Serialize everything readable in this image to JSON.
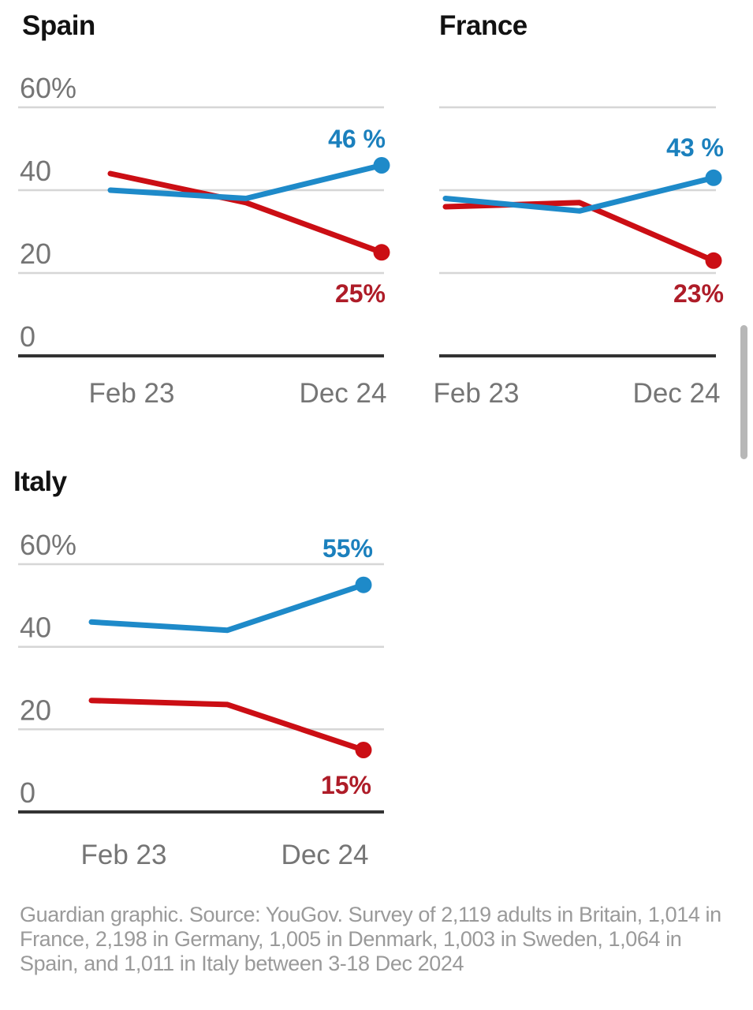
{
  "page": {
    "background": "#ffffff"
  },
  "colors": {
    "blue_line": "#1e8ac9",
    "blue_label": "#1b80bd",
    "red_line": "#cb0e14",
    "red_label": "#ae1c28",
    "gridline": "#d6d6d6",
    "axis": "#333333",
    "tick_text": "#757575",
    "title_text": "#121212",
    "footer_text": "#9a9a9a",
    "scrollbar": "#b7b7b7"
  },
  "chart_data": [
    {
      "type": "line",
      "title": "Spain",
      "categories": [
        "Feb 23",
        "",
        "Dec 24"
      ],
      "x_tick_labels": [
        "Feb 23",
        "Dec 24"
      ],
      "y_ticks": [
        {
          "label": "60%",
          "value": 60
        },
        {
          "label": "40",
          "value": 40
        },
        {
          "label": "20",
          "value": 20
        },
        {
          "label": "0",
          "value": 0
        }
      ],
      "gridline_values": [
        60,
        40,
        20
      ],
      "ylim": [
        0,
        65
      ],
      "legend": "none",
      "series": [
        {
          "name": "blue",
          "color": "#1e8ac9",
          "values": [
            40,
            38,
            46
          ],
          "end_label": "46 %"
        },
        {
          "name": "red",
          "color": "#cb0e14",
          "values": [
            44,
            37,
            25
          ],
          "end_label": "25%"
        }
      ]
    },
    {
      "type": "line",
      "title": "France",
      "categories": [
        "Feb 23",
        "",
        "Dec 24"
      ],
      "x_tick_labels": [
        "Feb 23",
        "Dec 24"
      ],
      "y_ticks": [],
      "gridline_values": [
        60,
        40,
        20
      ],
      "ylim": [
        0,
        65
      ],
      "legend": "none",
      "series": [
        {
          "name": "blue",
          "color": "#1e8ac9",
          "values": [
            38,
            35,
            43
          ],
          "end_label": "43 %"
        },
        {
          "name": "red",
          "color": "#cb0e14",
          "values": [
            36,
            37,
            23
          ],
          "end_label": "23%"
        }
      ]
    },
    {
      "type": "line",
      "title": "Italy",
      "categories": [
        "Feb 23",
        "",
        "Dec 24"
      ],
      "x_tick_labels": [
        "Feb 23",
        "Dec 24"
      ],
      "y_ticks": [
        {
          "label": "60%",
          "value": 60
        },
        {
          "label": "40",
          "value": 40
        },
        {
          "label": "20",
          "value": 20
        },
        {
          "label": "0",
          "value": 0
        }
      ],
      "gridline_values": [
        60,
        40,
        20
      ],
      "ylim": [
        0,
        65
      ],
      "legend": "none",
      "series": [
        {
          "name": "blue",
          "color": "#1e8ac9",
          "values": [
            46,
            44,
            55
          ],
          "end_label": "55%"
        },
        {
          "name": "red",
          "color": "#cb0e14",
          "values": [
            27,
            26,
            15
          ],
          "end_label": "15%"
        }
      ]
    }
  ],
  "footer": {
    "text": "Guardian graphic. Source: YouGov. Survey of 2,119 adults in Britain, 1,014 in France, 2,198 in Germany, 1,005 in Denmark, 1,003 in Sweden, 1,064 in Spain, and 1,011 in Italy between 3-18 Dec 2024"
  },
  "scrollbar": {
    "visible": true
  }
}
